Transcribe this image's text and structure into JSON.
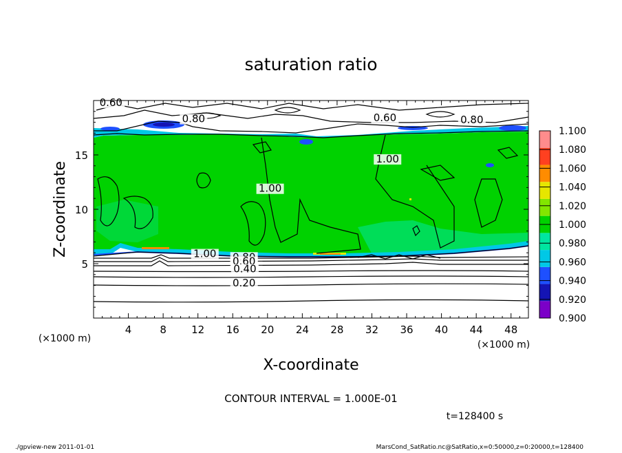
{
  "chart_data": {
    "type": "heatmap",
    "title": "saturation ratio",
    "xlabel": "X-coordinate",
    "ylabel": "Z-coordinate",
    "x_unit": "(×1000 m)",
    "y_unit": "(×1000 m)",
    "xlim": [
      0,
      50
    ],
    "ylim": [
      0,
      20
    ],
    "x_ticks": [
      4,
      8,
      12,
      16,
      20,
      24,
      28,
      32,
      36,
      40,
      44,
      48
    ],
    "y_ticks": [
      5,
      10,
      15
    ],
    "colorbar": {
      "levels": [
        0.9,
        0.92,
        0.94,
        0.96,
        0.98,
        1.0,
        1.02,
        1.04,
        1.06,
        1.08,
        1.1
      ],
      "labels": [
        "0.900",
        "0.920",
        "0.940",
        "0.960",
        "0.980",
        "1.000",
        "1.020",
        "1.040",
        "1.060",
        "1.080",
        "1.100"
      ],
      "colors": [
        "#7b00c8",
        "#1414b4",
        "#1e50ff",
        "#00c8e6",
        "#00e6a0",
        "#00d200",
        "#82e600",
        "#e6e600",
        "#ff8c00",
        "#ff4020",
        "#ff8c8c"
      ]
    },
    "contour_labels": [
      {
        "text": "0.60",
        "x": 2.0,
        "y": 19.5
      },
      {
        "text": "0.80",
        "x": 11.5,
        "y": 18.0
      },
      {
        "text": "0.60",
        "x": 33.5,
        "y": 18.1
      },
      {
        "text": "0.80",
        "x": 43.5,
        "y": 17.9
      },
      {
        "text": "1.00",
        "x": 33.8,
        "y": 14.3
      },
      {
        "text": "1.00",
        "x": 20.3,
        "y": 11.6
      },
      {
        "text": "1.00",
        "x": 12.8,
        "y": 5.6
      },
      {
        "text": "0.80",
        "x": 17.3,
        "y": 5.3
      },
      {
        "text": "0.60",
        "x": 17.3,
        "y": 4.9
      },
      {
        "text": "0.40",
        "x": 17.4,
        "y": 4.2
      },
      {
        "text": "0.20",
        "x": 17.3,
        "y": 2.9
      }
    ],
    "contour_interval_text": "CONTOUR INTERVAL = 1.000E-01",
    "time_text": "t=128400 s"
  },
  "footer": {
    "left": "./gpview-new  2011-01-01",
    "right": "MarsCond_SatRatio.nc@SatRatio,x=0:50000,z=0:20000,t=128400"
  },
  "colors": {
    "background": "#ffffff",
    "axis": "#000000",
    "saturated_field": "#00d200",
    "subsaturated_field": "#ffffff"
  }
}
